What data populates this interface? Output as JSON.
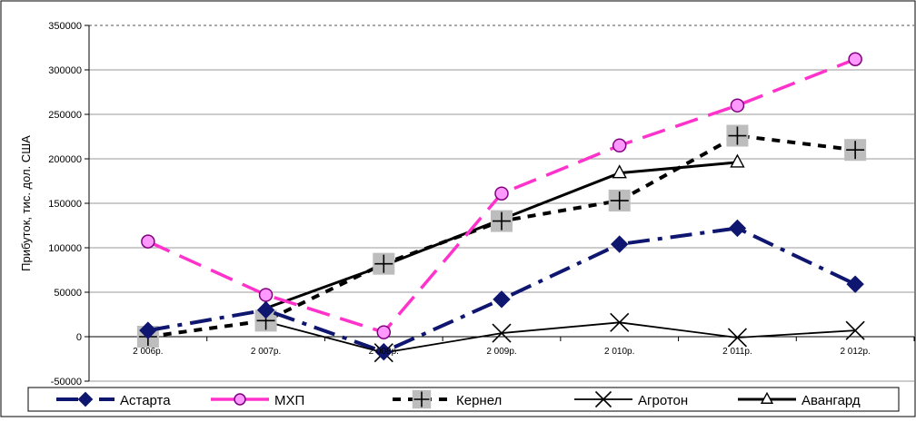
{
  "chart_data": {
    "type": "line",
    "categories": [
      "2 006р.",
      "2 007р.",
      "2 008р.",
      "2 009р.",
      "2 010р.",
      "2 011р.",
      "2 012р."
    ],
    "ylabel": "Прибуток, тис. дол. США",
    "ylim": [
      -50000,
      350000
    ],
    "ytick_step": 50000,
    "y_ticks": [
      "-50000",
      "0",
      "50000",
      "100000",
      "150000",
      "200000",
      "250000",
      "300000",
      "350000"
    ],
    "grid": true,
    "legend_position": "bottom",
    "series": [
      {
        "name": "Астарта",
        "color": "#0f1670",
        "dash": "long-dash-dot",
        "marker": "diamond",
        "values": [
          7000,
          30000,
          -17000,
          42000,
          104000,
          122000,
          59000
        ]
      },
      {
        "name": "МХП",
        "color": "#ff33cc",
        "dash": "long-dash",
        "marker": "circle",
        "values": [
          107000,
          47000,
          5000,
          161000,
          215000,
          260000,
          312000
        ]
      },
      {
        "name": "Кернел",
        "color": "#000000",
        "dash": "short-dash",
        "marker": "plus-on-grey-square",
        "values": [
          0,
          18000,
          82000,
          130000,
          153000,
          226000,
          210000
        ]
      },
      {
        "name": "Агротон",
        "color": "#000000",
        "dash": "solid",
        "marker": "x",
        "values": [
          null,
          17000,
          -18000,
          4000,
          16000,
          -1000,
          7000
        ]
      },
      {
        "name": "Авангард",
        "color": "#000000",
        "dash": "solid-bold",
        "marker": "triangle",
        "values": [
          null,
          32000,
          80000,
          132000,
          184000,
          196000,
          null
        ]
      }
    ]
  }
}
